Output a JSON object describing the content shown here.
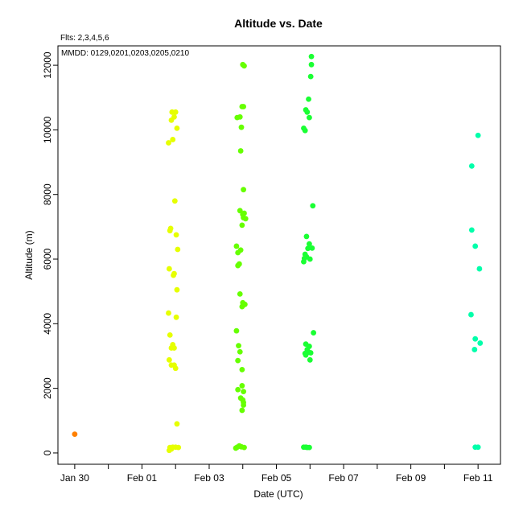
{
  "chart_data": {
    "type": "scatter",
    "title": "Altitude  vs. Date",
    "subtitle_flts": "Flts: 2,3,4,5,6",
    "subtitle_mmdd": "MMDD: 0129,0201,0203,0205,0210",
    "xlabel": "Date (UTC)",
    "ylabel": "Altitude (m)",
    "xlim": [
      "2020-01-29T12:00",
      "2020-02-11T16:00"
    ],
    "ylim": [
      -350,
      12600
    ],
    "xticks": [
      {
        "date": "2020-01-30",
        "label": "Jan 30"
      },
      {
        "date": "2020-02-01",
        "label": "Feb 01"
      },
      {
        "date": "2020-02-03",
        "label": "Feb 03"
      },
      {
        "date": "2020-02-05",
        "label": "Feb 05"
      },
      {
        "date": "2020-02-07",
        "label": "Feb 07"
      },
      {
        "date": "2020-02-09",
        "label": "Feb 09"
      },
      {
        "date": "2020-02-11",
        "label": "Feb 11"
      }
    ],
    "xminorticks": [
      "2020-01-31",
      "2020-02-02",
      "2020-02-04",
      "2020-02-06",
      "2020-02-08",
      "2020-02-10"
    ],
    "yticks": [
      0,
      2000,
      4000,
      6000,
      8000,
      10000,
      12000
    ],
    "grid": false,
    "series": [
      {
        "color": "#ff8000",
        "points": [
          {
            "x": "2020-01-30T00:00",
            "y": 580
          }
        ]
      },
      {
        "color": "#e6ff00",
        "points": [
          {
            "x": "2020-02-01T21:30",
            "y": 10550
          },
          {
            "x": "2020-02-02T00:00",
            "y": 10550
          },
          {
            "x": "2020-02-01T21:00",
            "y": 10300
          },
          {
            "x": "2020-02-01T23:00",
            "y": 10400
          },
          {
            "x": "2020-02-02T01:00",
            "y": 10050
          },
          {
            "x": "2020-02-01T22:00",
            "y": 9700
          },
          {
            "x": "2020-02-01T19:00",
            "y": 9600
          },
          {
            "x": "2020-02-01T23:30",
            "y": 7800
          },
          {
            "x": "2020-02-01T20:30",
            "y": 6950
          },
          {
            "x": "2020-02-01T20:00",
            "y": 6880
          },
          {
            "x": "2020-02-02T00:30",
            "y": 6750
          },
          {
            "x": "2020-02-02T01:30",
            "y": 6300
          },
          {
            "x": "2020-02-01T19:30",
            "y": 5700
          },
          {
            "x": "2020-02-01T23:00",
            "y": 5550
          },
          {
            "x": "2020-02-01T22:30",
            "y": 5500
          },
          {
            "x": "2020-02-02T01:00",
            "y": 5050
          },
          {
            "x": "2020-02-01T19:00",
            "y": 4330
          },
          {
            "x": "2020-02-02T00:30",
            "y": 4200
          },
          {
            "x": "2020-02-01T20:00",
            "y": 3650
          },
          {
            "x": "2020-02-01T22:00",
            "y": 3350
          },
          {
            "x": "2020-02-01T21:00",
            "y": 3250
          },
          {
            "x": "2020-02-01T23:00",
            "y": 3250
          },
          {
            "x": "2020-02-01T19:30",
            "y": 2880
          },
          {
            "x": "2020-02-01T21:00",
            "y": 2720
          },
          {
            "x": "2020-02-01T23:00",
            "y": 2720
          },
          {
            "x": "2020-02-02T00:00",
            "y": 2620
          },
          {
            "x": "2020-02-02T01:00",
            "y": 900
          },
          {
            "x": "2020-02-01T20:00",
            "y": 170
          },
          {
            "x": "2020-02-01T22:00",
            "y": 180
          },
          {
            "x": "2020-02-02T00:00",
            "y": 180
          },
          {
            "x": "2020-02-02T02:00",
            "y": 170
          },
          {
            "x": "2020-02-01T21:00",
            "y": 120
          },
          {
            "x": "2020-02-01T19:30",
            "y": 80
          }
        ]
      },
      {
        "color": "#66ff00",
        "points": [
          {
            "x": "2020-02-04T00:00",
            "y": 12020
          },
          {
            "x": "2020-02-04T01:00",
            "y": 11980
          },
          {
            "x": "2020-02-03T23:30",
            "y": 10720
          },
          {
            "x": "2020-02-04T00:30",
            "y": 10720
          },
          {
            "x": "2020-02-03T20:00",
            "y": 10380
          },
          {
            "x": "2020-02-03T22:00",
            "y": 10400
          },
          {
            "x": "2020-02-03T23:00",
            "y": 10080
          },
          {
            "x": "2020-02-03T22:30",
            "y": 9350
          },
          {
            "x": "2020-02-04T00:30",
            "y": 8150
          },
          {
            "x": "2020-02-03T22:00",
            "y": 7500
          },
          {
            "x": "2020-02-04T00:00",
            "y": 7380
          },
          {
            "x": "2020-02-04T01:00",
            "y": 7420
          },
          {
            "x": "2020-02-04T00:30",
            "y": 7280
          },
          {
            "x": "2020-02-04T02:00",
            "y": 7250
          },
          {
            "x": "2020-02-03T23:30",
            "y": 7050
          },
          {
            "x": "2020-02-03T19:30",
            "y": 6400
          },
          {
            "x": "2020-02-03T22:30",
            "y": 6280
          },
          {
            "x": "2020-02-03T20:30",
            "y": 6200
          },
          {
            "x": "2020-02-03T21:30",
            "y": 5850
          },
          {
            "x": "2020-02-03T20:30",
            "y": 5800
          },
          {
            "x": "2020-02-03T22:00",
            "y": 4920
          },
          {
            "x": "2020-02-04T00:00",
            "y": 4650
          },
          {
            "x": "2020-02-04T01:30",
            "y": 4600
          },
          {
            "x": "2020-02-04T00:30",
            "y": 4580
          },
          {
            "x": "2020-02-03T23:30",
            "y": 4530
          },
          {
            "x": "2020-02-03T19:30",
            "y": 3780
          },
          {
            "x": "2020-02-03T21:00",
            "y": 3320
          },
          {
            "x": "2020-02-03T22:00",
            "y": 3130
          },
          {
            "x": "2020-02-03T20:30",
            "y": 2860
          },
          {
            "x": "2020-02-03T23:30",
            "y": 2580
          },
          {
            "x": "2020-02-03T23:30",
            "y": 2080
          },
          {
            "x": "2020-02-03T20:30",
            "y": 1960
          },
          {
            "x": "2020-02-04T00:30",
            "y": 1900
          },
          {
            "x": "2020-02-03T22:30",
            "y": 1700
          },
          {
            "x": "2020-02-04T00:00",
            "y": 1640
          },
          {
            "x": "2020-02-04T00:30",
            "y": 1560
          },
          {
            "x": "2020-02-04T00:30",
            "y": 1480
          },
          {
            "x": "2020-02-03T23:30",
            "y": 1320
          },
          {
            "x": "2020-02-03T20:00",
            "y": 180
          },
          {
            "x": "2020-02-03T21:30",
            "y": 220
          },
          {
            "x": "2020-02-03T23:00",
            "y": 190
          },
          {
            "x": "2020-02-04T01:00",
            "y": 170
          },
          {
            "x": "2020-02-03T19:00",
            "y": 150
          }
        ]
      },
      {
        "color": "#1aff33",
        "points": [
          {
            "x": "2020-02-06T01:00",
            "y": 12270
          },
          {
            "x": "2020-02-06T01:00",
            "y": 12020
          },
          {
            "x": "2020-02-06T00:30",
            "y": 11650
          },
          {
            "x": "2020-02-05T23:00",
            "y": 10950
          },
          {
            "x": "2020-02-05T21:00",
            "y": 10620
          },
          {
            "x": "2020-02-05T22:00",
            "y": 10550
          },
          {
            "x": "2020-02-05T23:30",
            "y": 10380
          },
          {
            "x": "2020-02-05T19:30",
            "y": 10050
          },
          {
            "x": "2020-02-05T20:30",
            "y": 9980
          },
          {
            "x": "2020-02-06T02:00",
            "y": 7650
          },
          {
            "x": "2020-02-05T21:30",
            "y": 6700
          },
          {
            "x": "2020-02-05T23:30",
            "y": 6470
          },
          {
            "x": "2020-02-06T01:30",
            "y": 6340
          },
          {
            "x": "2020-02-05T22:30",
            "y": 6330
          },
          {
            "x": "2020-02-05T20:30",
            "y": 6150
          },
          {
            "x": "2020-02-05T21:30",
            "y": 6070
          },
          {
            "x": "2020-02-05T20:00",
            "y": 6020
          },
          {
            "x": "2020-02-06T00:00",
            "y": 6000
          },
          {
            "x": "2020-02-05T19:30",
            "y": 5920
          },
          {
            "x": "2020-02-06T02:30",
            "y": 3720
          },
          {
            "x": "2020-02-05T21:00",
            "y": 3370
          },
          {
            "x": "2020-02-05T23:30",
            "y": 3300
          },
          {
            "x": "2020-02-05T22:00",
            "y": 3200
          },
          {
            "x": "2020-02-05T23:00",
            "y": 3120
          },
          {
            "x": "2020-02-05T20:30",
            "y": 3080
          },
          {
            "x": "2020-02-06T00:30",
            "y": 3100
          },
          {
            "x": "2020-02-05T21:00",
            "y": 3030
          },
          {
            "x": "2020-02-06T00:00",
            "y": 2880
          },
          {
            "x": "2020-02-05T19:30",
            "y": 180
          },
          {
            "x": "2020-02-05T21:00",
            "y": 180
          },
          {
            "x": "2020-02-05T22:00",
            "y": 170
          },
          {
            "x": "2020-02-05T23:30",
            "y": 170
          }
        ]
      },
      {
        "color": "#00ffaa",
        "points": [
          {
            "x": "2020-02-11T00:00",
            "y": 9830
          },
          {
            "x": "2020-02-10T19:30",
            "y": 8880
          },
          {
            "x": "2020-02-10T19:30",
            "y": 6900
          },
          {
            "x": "2020-02-10T22:00",
            "y": 6400
          },
          {
            "x": "2020-02-11T01:00",
            "y": 5700
          },
          {
            "x": "2020-02-10T19:00",
            "y": 4280
          },
          {
            "x": "2020-02-10T22:00",
            "y": 3530
          },
          {
            "x": "2020-02-11T01:30",
            "y": 3400
          },
          {
            "x": "2020-02-10T21:30",
            "y": 3200
          },
          {
            "x": "2020-02-10T22:00",
            "y": 180
          },
          {
            "x": "2020-02-11T00:00",
            "y": 180
          }
        ]
      }
    ]
  }
}
